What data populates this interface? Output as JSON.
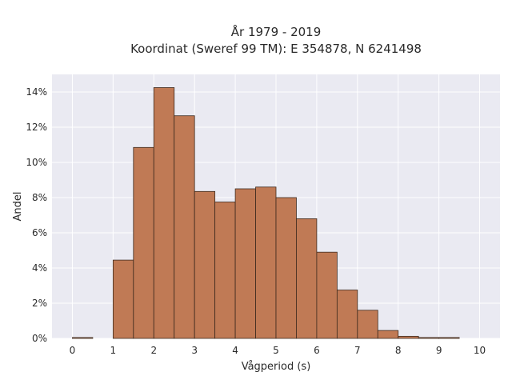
{
  "chart_data": {
    "type": "bar",
    "title": "År 1979 - 2019",
    "subtitle": "Koordinat (Sweref 99 TM): E 354878, N 6241498",
    "xlabel": "Vågperiod (s)",
    "ylabel": "Andel",
    "bin_width": 0.5,
    "bin_starts": [
      0,
      0.5,
      1,
      1.5,
      2,
      2.5,
      3,
      3.5,
      4,
      4.5,
      5,
      5.5,
      6,
      6.5,
      7,
      7.5,
      8,
      8.5,
      9,
      9.5
    ],
    "values": [
      0.05,
      0,
      4.45,
      10.85,
      14.25,
      12.65,
      8.35,
      7.75,
      8.5,
      8.6,
      8.0,
      6.8,
      4.9,
      2.75,
      1.6,
      0.45,
      0.12,
      0.05,
      0.05,
      0
    ],
    "xlim": [
      -0.5,
      10.5
    ],
    "ylim": [
      0,
      15
    ],
    "xticks": [
      0,
      1,
      2,
      3,
      4,
      5,
      6,
      7,
      8,
      9,
      10
    ],
    "xtick_labels": [
      "0",
      "1",
      "2",
      "3",
      "4",
      "5",
      "6",
      "7",
      "8",
      "9",
      "10"
    ],
    "yticks": [
      0,
      2,
      4,
      6,
      8,
      10,
      12,
      14
    ],
    "ytick_labels": [
      "0%",
      "2%",
      "4%",
      "6%",
      "8%",
      "10%",
      "12%",
      "14%"
    ],
    "grid": true,
    "colors": {
      "bar": "#c07a55",
      "bar_edge": "#3d2a1e",
      "plot_bg": "#eaeaf2",
      "grid": "#ffffff"
    }
  }
}
